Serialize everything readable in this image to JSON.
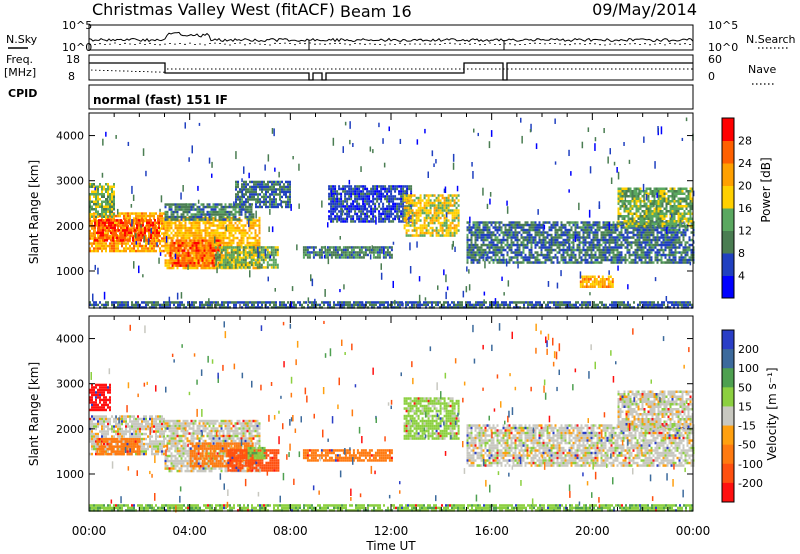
{
  "header": {
    "station": "Christmas Valley West (fitACF)",
    "beam": "Beam 16",
    "date": "09/May/2014"
  },
  "noise_panel": {
    "left_label": "N.Sky",
    "right_label": "N.Search",
    "left_ticks": [
      "10^5",
      "10^0"
    ],
    "right_ticks": [
      "10^5",
      "10^0"
    ]
  },
  "freq_panel": {
    "left_label": "Freq.",
    "left_unit": "[MHz]",
    "right_label": "Nave",
    "left_ticks": [
      "18",
      "8"
    ],
    "right_ticks": [
      "60",
      "0"
    ]
  },
  "cpid": {
    "label": "CPID",
    "value": "normal (fast) 151 IF"
  },
  "colors": {
    "power_scale": [
      "#0000ff",
      "#2040c0",
      "#4a7d52",
      "#5aa860",
      "#ffd000",
      "#ffa000",
      "#ff6000",
      "#ff0000"
    ],
    "velocity_scale": [
      "#2a3ec6",
      "#3c6a9c",
      "#4ea050",
      "#8cd040",
      "#c8c8c0",
      "#ffa010",
      "#ff7a10",
      "#ff5010",
      "#ff1010"
    ]
  },
  "chart_data": [
    {
      "type": "heatmap",
      "name": "power",
      "ylabel": "Slant Range [km]",
      "y_ticks": [
        "4000",
        "3000",
        "2000",
        "1000"
      ],
      "y_range_km": [
        180,
        4500
      ],
      "x_range_hours": [
        0,
        24
      ],
      "colorbar_label": "Power [dB]",
      "colorbar_ticks": [
        "28",
        "24",
        "20",
        "16",
        "12",
        "8",
        "4"
      ],
      "colorbar_range_db": [
        0,
        32
      ],
      "echo_regions": [
        {
          "t0": 0.0,
          "t1": 3.0,
          "r0": 1450,
          "r1": 2300,
          "value": 22
        },
        {
          "t0": 0.2,
          "t1": 2.8,
          "r0": 1700,
          "r1": 2150,
          "value": 27
        },
        {
          "t0": 0.0,
          "t1": 1.0,
          "r0": 2200,
          "r1": 2950,
          "value": 14
        },
        {
          "t0": 3.0,
          "t1": 6.8,
          "r0": 1050,
          "r1": 2200,
          "value": 20
        },
        {
          "t0": 3.2,
          "t1": 5.2,
          "r0": 1100,
          "r1": 1700,
          "value": 26
        },
        {
          "t0": 5.0,
          "t1": 7.5,
          "r0": 1100,
          "r1": 1550,
          "value": 14
        },
        {
          "t0": 3.0,
          "t1": 6.5,
          "r0": 2150,
          "r1": 2500,
          "value": 10
        },
        {
          "t0": 5.8,
          "t1": 8.0,
          "r0": 2400,
          "r1": 3000,
          "value": 9
        },
        {
          "t0": 8.5,
          "t1": 12.0,
          "r0": 1300,
          "r1": 1550,
          "value": 10
        },
        {
          "t0": 9.5,
          "t1": 12.8,
          "r0": 2100,
          "r1": 2900,
          "value": 6
        },
        {
          "t0": 12.5,
          "t1": 14.7,
          "r0": 1800,
          "r1": 2700,
          "value": 18
        },
        {
          "t0": 15.0,
          "t1": 24.0,
          "r0": 1200,
          "r1": 2100,
          "value": 9
        },
        {
          "t0": 21.0,
          "t1": 24.0,
          "r0": 2000,
          "r1": 2850,
          "value": 14
        },
        {
          "t0": 19.5,
          "t1": 20.8,
          "r0": 650,
          "r1": 900,
          "value": 21
        },
        {
          "t0": 0.0,
          "t1": 24.0,
          "r0": 180,
          "r1": 330,
          "value": 8
        }
      ]
    },
    {
      "type": "heatmap",
      "name": "velocity",
      "xlabel": "Time UT",
      "ylabel": "Slant Range [km]",
      "y_ticks": [
        "4000",
        "3000",
        "2000",
        "1000"
      ],
      "x_ticks": [
        "00:00",
        "04:00",
        "08:00",
        "12:00",
        "16:00",
        "20:00",
        "00:00"
      ],
      "y_range_km": [
        180,
        4500
      ],
      "x_range_hours": [
        0,
        24
      ],
      "colorbar_label": "Velocity [m s⁻¹]",
      "colorbar_ticks": [
        "200",
        "100",
        "50",
        "15",
        "-15",
        "-50",
        "-100",
        "-200"
      ],
      "colorbar_range_ms": [
        -250,
        250
      ],
      "echo_regions": [
        {
          "t0": 0.0,
          "t1": 0.8,
          "r0": 2400,
          "r1": 3000,
          "value": -220
        },
        {
          "t0": 0.0,
          "t1": 3.0,
          "r0": 1450,
          "r1": 2300,
          "value": 0
        },
        {
          "t0": 0.3,
          "t1": 2.0,
          "r0": 1450,
          "r1": 1800,
          "value": -80
        },
        {
          "t0": 3.0,
          "t1": 6.8,
          "r0": 1050,
          "r1": 2200,
          "value": 0
        },
        {
          "t0": 4.0,
          "t1": 6.5,
          "r0": 1150,
          "r1": 1700,
          "value": -70
        },
        {
          "t0": 5.5,
          "t1": 7.5,
          "r0": 1100,
          "r1": 1550,
          "value": -130
        },
        {
          "t0": 6.3,
          "t1": 7.0,
          "r0": 1350,
          "r1": 1600,
          "value": 40
        },
        {
          "t0": 8.5,
          "t1": 12.0,
          "r0": 1300,
          "r1": 1550,
          "value": -80
        },
        {
          "t0": 12.5,
          "t1": 14.7,
          "r0": 1800,
          "r1": 2700,
          "value": 30
        },
        {
          "t0": 15.0,
          "t1": 24.0,
          "r0": 1200,
          "r1": 2100,
          "value": 0
        },
        {
          "t0": 21.0,
          "t1": 24.0,
          "r0": 2000,
          "r1": 2850,
          "value": 0
        },
        {
          "t0": 0.0,
          "t1": 24.0,
          "r0": 180,
          "r1": 330,
          "value": 40
        }
      ]
    }
  ]
}
